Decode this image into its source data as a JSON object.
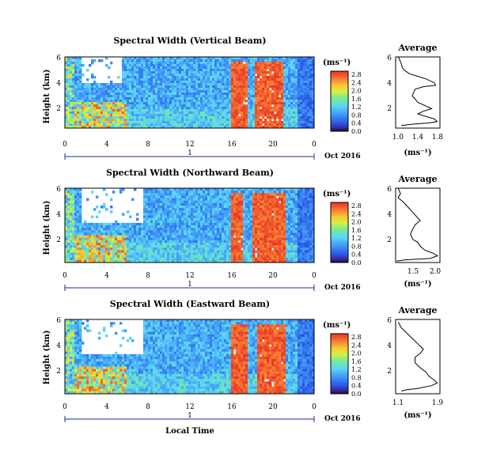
{
  "chart_data": [
    {
      "type": "heatmap",
      "title": "Spectral Width (Vertical Beam)",
      "ylabel": "Height (km)",
      "y_ticks": [
        "6",
        "4",
        "2"
      ],
      "ylim": [
        0.5,
        6
      ],
      "x_ticks": [
        "0",
        "4",
        "8",
        "12",
        "16",
        "20",
        "0"
      ],
      "xlim": [
        0,
        24
      ],
      "day_label": "1",
      "date_label": "Oct 2016",
      "colorbar": {
        "unit": "(ms⁻¹)",
        "ticks": [
          "2.8",
          "2.4",
          "2.0",
          "1.6",
          "1.2",
          "0.8",
          "0.4",
          "0.0"
        ],
        "range": [
          0.0,
          3.0
        ]
      },
      "average": {
        "title": "Average",
        "xlabel": "(ms⁻¹)",
        "x_ticks": [
          "1.0",
          "1.4",
          "1.8"
        ],
        "xlim": [
          1.0,
          1.8
        ],
        "y_ticks": [
          "6",
          "4",
          "2"
        ],
        "ylim": [
          0.5,
          6
        ],
        "profile": [
          [
            1.05,
            6.0
          ],
          [
            1.1,
            5.5
          ],
          [
            1.12,
            5.2
          ],
          [
            1.15,
            5.0
          ],
          [
            1.25,
            4.7
          ],
          [
            1.4,
            4.5
          ],
          [
            1.55,
            4.3
          ],
          [
            1.7,
            4.0
          ],
          [
            1.72,
            3.8
          ],
          [
            1.5,
            3.7
          ],
          [
            1.35,
            3.5
          ],
          [
            1.3,
            3.0
          ],
          [
            1.4,
            2.5
          ],
          [
            1.55,
            2.2
          ],
          [
            1.65,
            2.0
          ],
          [
            1.5,
            1.8
          ],
          [
            1.4,
            1.6
          ],
          [
            1.55,
            1.4
          ],
          [
            1.7,
            1.2
          ],
          [
            1.75,
            1.0
          ],
          [
            1.6,
            0.9
          ],
          [
            1.3,
            0.8
          ],
          [
            1.1,
            0.7
          ]
        ]
      },
      "hot_spans": [
        [
          16.0,
          17.5
        ],
        [
          18.2,
          21.0
        ]
      ]
    },
    {
      "type": "heatmap",
      "title": "Spectral Width (Northward Beam)",
      "ylabel": "Height (km)",
      "y_ticks": [
        "6",
        "4",
        "2"
      ],
      "ylim": [
        0.5,
        6
      ],
      "x_ticks": [
        "0",
        "4",
        "8",
        "12",
        "16",
        "20",
        "0"
      ],
      "xlim": [
        0,
        24
      ],
      "day_label": "1",
      "date_label": "Oct 2016",
      "colorbar": {
        "unit": "(ms⁻¹)",
        "ticks": [
          "2.8",
          "2.4",
          "2.0",
          "1.6",
          "1.2",
          "0.8",
          "0.4",
          "0.0"
        ],
        "range": [
          0.0,
          3.0
        ]
      },
      "average": {
        "title": "Average",
        "xlabel": "(ms⁻¹)",
        "x_ticks": [
          "1.5",
          "2.0"
        ],
        "xlim": [
          1.1,
          2.0
        ],
        "y_ticks": [
          "6",
          "4",
          "2"
        ],
        "ylim": [
          0.5,
          6
        ],
        "profile": [
          [
            1.15,
            6.0
          ],
          [
            1.2,
            5.6
          ],
          [
            1.15,
            5.3
          ],
          [
            1.25,
            5.0
          ],
          [
            1.35,
            4.6
          ],
          [
            1.45,
            4.2
          ],
          [
            1.55,
            3.8
          ],
          [
            1.6,
            3.6
          ],
          [
            1.5,
            3.3
          ],
          [
            1.45,
            3.0
          ],
          [
            1.4,
            2.6
          ],
          [
            1.45,
            2.2
          ],
          [
            1.55,
            2.0
          ],
          [
            1.6,
            1.7
          ],
          [
            1.7,
            1.4
          ],
          [
            1.85,
            1.2
          ],
          [
            1.95,
            1.0
          ],
          [
            1.8,
            0.8
          ],
          [
            1.3,
            0.7
          ],
          [
            1.12,
            0.6
          ]
        ]
      },
      "hot_spans": [
        [
          16.0,
          17.2
        ],
        [
          18.0,
          21.3
        ]
      ]
    },
    {
      "type": "heatmap",
      "title": "Spectral Width (Eastward Beam)",
      "ylabel": "Height (km)",
      "y_ticks": [
        "6",
        "4",
        "2"
      ],
      "ylim": [
        0.5,
        6
      ],
      "x_ticks": [
        "0",
        "4",
        "8",
        "12",
        "16",
        "20",
        "0"
      ],
      "xlim": [
        0,
        24
      ],
      "day_label": "1",
      "date_label": "Oct 2016",
      "xlabel": "Local Time",
      "colorbar": {
        "unit": "(ms⁻¹)",
        "ticks": [
          "2.8",
          "2.4",
          "2.0",
          "1.6",
          "1.2",
          "0.8",
          "0.4",
          "0.0"
        ],
        "range": [
          0.0,
          3.0
        ]
      },
      "average": {
        "title": "Average",
        "xlabel": "(ms⁻¹)",
        "x_ticks": [
          "1.1",
          "1.9"
        ],
        "xlim": [
          1.1,
          1.9
        ],
        "y_ticks": [
          "6",
          "4",
          "2"
        ],
        "ylim": [
          0.5,
          6
        ],
        "profile": [
          [
            1.15,
            5.8
          ],
          [
            1.2,
            5.4
          ],
          [
            1.3,
            5.0
          ],
          [
            1.4,
            4.6
          ],
          [
            1.5,
            4.2
          ],
          [
            1.6,
            3.8
          ],
          [
            1.55,
            3.5
          ],
          [
            1.45,
            3.2
          ],
          [
            1.45,
            2.8
          ],
          [
            1.55,
            2.4
          ],
          [
            1.65,
            2.1
          ],
          [
            1.7,
            1.8
          ],
          [
            1.8,
            1.5
          ],
          [
            1.85,
            1.3
          ],
          [
            1.75,
            1.1
          ],
          [
            1.5,
            0.9
          ],
          [
            1.3,
            0.8
          ],
          [
            1.2,
            0.7
          ]
        ]
      },
      "hot_spans": [
        [
          16.0,
          17.5
        ],
        [
          18.5,
          21.2
        ]
      ]
    }
  ]
}
